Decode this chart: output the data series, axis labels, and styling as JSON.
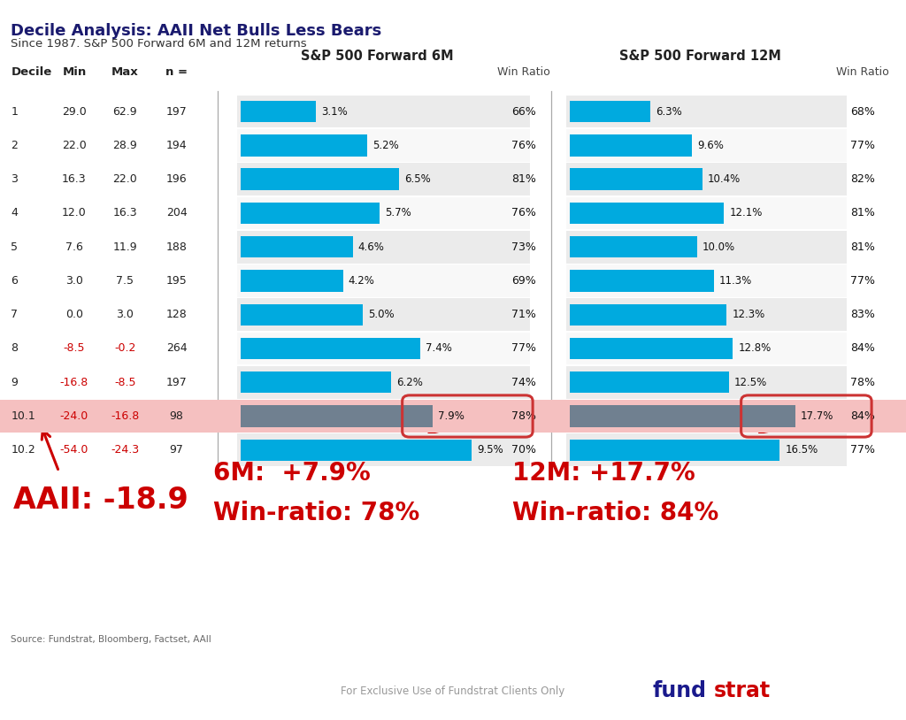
{
  "title": "Decile Analysis: AAII Net Bulls Less Bears",
  "subtitle": "Since 1987. S&P 500 Forward 6M and 12M returns",
  "deciles": [
    "1",
    "2",
    "3",
    "4",
    "5",
    "6",
    "7",
    "8",
    "9",
    "10.1",
    "10.2"
  ],
  "min_vals": [
    "29.0",
    "22.0",
    "16.3",
    "12.0",
    "7.6",
    "3.0",
    "0.0",
    "-8.5",
    "-16.8",
    "-24.0",
    "-54.0"
  ],
  "max_vals": [
    "62.9",
    "28.9",
    "22.0",
    "16.3",
    "11.9",
    "7.5",
    "3.0",
    "-0.2",
    "-8.5",
    "-16.8",
    "-24.3"
  ],
  "n_vals": [
    "197",
    "194",
    "196",
    "204",
    "188",
    "195",
    "128",
    "264",
    "197",
    "98",
    "97"
  ],
  "min_negative": [
    false,
    false,
    false,
    false,
    false,
    false,
    false,
    true,
    true,
    true,
    true
  ],
  "max_negative": [
    false,
    false,
    false,
    false,
    false,
    false,
    false,
    true,
    true,
    true,
    true
  ],
  "fwd6m_values": [
    3.1,
    5.2,
    6.5,
    5.7,
    4.6,
    4.2,
    5.0,
    7.4,
    6.2,
    7.9,
    9.5
  ],
  "fwd6m_win": [
    "66%",
    "76%",
    "81%",
    "76%",
    "73%",
    "69%",
    "71%",
    "77%",
    "74%",
    "78%",
    "70%"
  ],
  "fwd12m_values": [
    6.3,
    9.6,
    10.4,
    12.1,
    10.0,
    11.3,
    12.3,
    12.8,
    12.5,
    17.7,
    16.5
  ],
  "fwd12m_win": [
    "68%",
    "77%",
    "82%",
    "81%",
    "81%",
    "77%",
    "83%",
    "84%",
    "78%",
    "84%",
    "77%"
  ],
  "bar_color": "#00AADF",
  "highlight_row": 9,
  "highlight_color": "#F5C0C0",
  "highlight_bar_color": "#708090",
  "bg_color": "#FFFFFF",
  "chart_bg_even": "#EBEBEB",
  "chart_bg_odd": "#F8F8F8",
  "title_color": "#1a1a6e",
  "source_text": "Source: Fundstrat, Bloomberg, Factset, AAII",
  "footer_text": "For Exclusive Use of Fundstrat Clients Only",
  "big_label_aaii": "AAII: -18.9",
  "big_label_6m": "6M:  +7.9%",
  "big_label_6m_win": "Win-ratio: 78%",
  "big_label_12m": "12M: +17.7%",
  "big_label_12m_win": "Win-ratio: 84%",
  "red_color": "#CC0000",
  "fundstrat_blue": "#1a1a8c",
  "fundstrat_red": "#CC0000"
}
